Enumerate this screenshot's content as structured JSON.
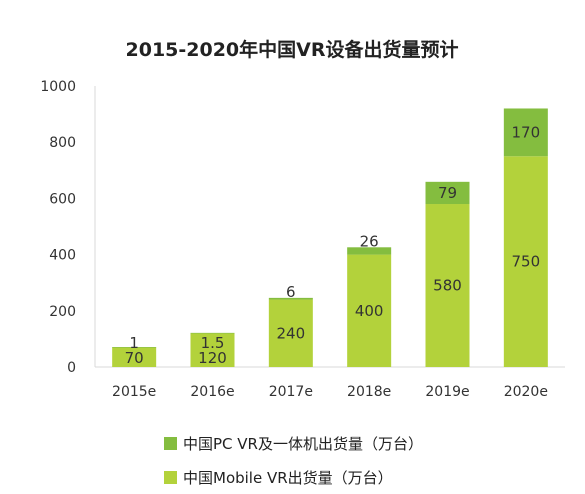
{
  "chart_data": {
    "type": "bar",
    "stacked": true,
    "title": "2015-2020年中国VR设备出货量预计",
    "xlabel": "",
    "ylabel": "",
    "ylim": [
      0,
      1000
    ],
    "yticks": [
      0,
      200,
      400,
      600,
      800,
      1000
    ],
    "categories": [
      "2015e",
      "2016e",
      "2017e",
      "2018e",
      "2019e",
      "2020e"
    ],
    "series": [
      {
        "name": "中国Mobile VR出货量（万台）",
        "values": [
          70,
          120,
          240,
          400,
          580,
          750
        ],
        "labels": [
          "70",
          "120",
          "240",
          "400",
          "580",
          "750"
        ],
        "color": "#b3d23b"
      },
      {
        "name": "中国PC VR及一体机出货量（万台）",
        "values": [
          1,
          1.5,
          6,
          26,
          79,
          170
        ],
        "labels": [
          "1",
          "1.5",
          "6",
          "26",
          "79",
          "170"
        ],
        "color": "#84bd3f"
      }
    ],
    "grid": false,
    "legend_position": "bottom"
  }
}
